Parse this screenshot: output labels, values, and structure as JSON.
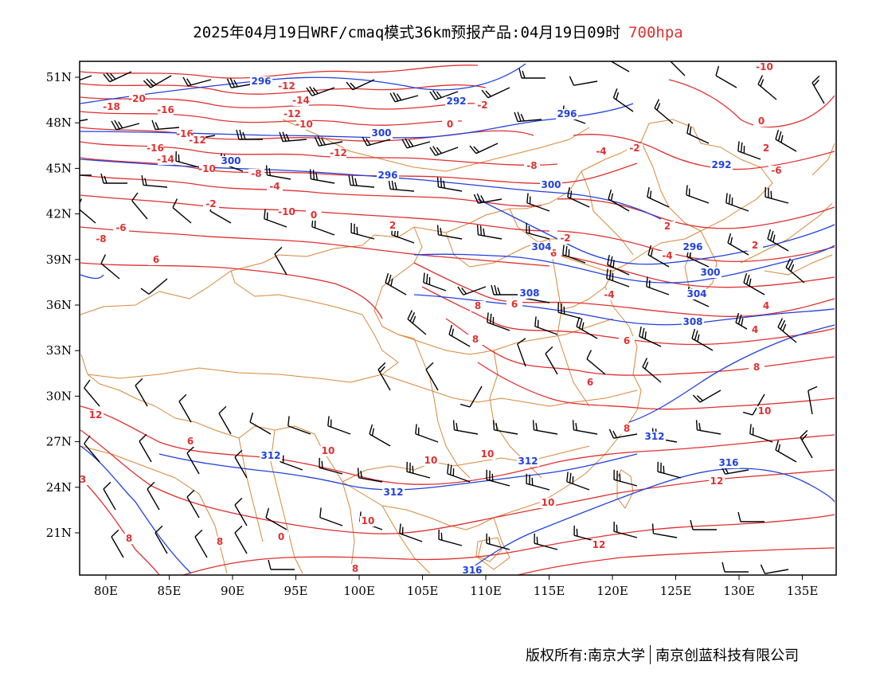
{
  "title": {
    "main": "2025年04月19日WRF/cmaq模式36km预报产品:04月19日09时",
    "level": "700hpa"
  },
  "axes": {
    "lon_labels": [
      "80E",
      "85E",
      "90E",
      "95E",
      "100E",
      "105E",
      "110E",
      "115E",
      "120E",
      "125E",
      "130E",
      "135E"
    ],
    "lat_labels": [
      "51N",
      "48N",
      "45N",
      "42N",
      "39N",
      "36N",
      "33N",
      "30N",
      "27N",
      "24N",
      "21N"
    ],
    "lon_range": [
      78,
      138
    ],
    "lat_range": [
      17.7,
      52
    ]
  },
  "colors": {
    "temperature": "#e03030",
    "geopotential": "#2040e0",
    "boundary": "#d8883a",
    "wind": "#000000"
  },
  "temperature_labels": [
    "-10",
    "-12",
    "-18",
    "-20",
    "-16",
    "-16",
    "-14",
    "-12",
    "-10",
    "-2",
    "0",
    "-16",
    "-12",
    "-14",
    "-10",
    "-8",
    "-4",
    "-2",
    "-6",
    "-8",
    "-10",
    "-12",
    "-8",
    "-4",
    "-2",
    "0",
    "2",
    "-6",
    "2",
    "-4",
    "-2",
    "-4",
    "6",
    "0",
    "2",
    "6",
    "8",
    "8",
    "6",
    "6",
    "4",
    "4",
    "6",
    "8",
    "6",
    "12",
    "8",
    "8",
    "10",
    "10",
    "10",
    "8",
    "12",
    "10",
    "12",
    "10",
    "10",
    "3",
    "0",
    "8",
    "2"
  ],
  "geopotential_labels": [
    "296",
    "292",
    "296",
    "300",
    "300",
    "296",
    "292",
    "300",
    "304",
    "296",
    "300",
    "308",
    "304",
    "308",
    "312",
    "312",
    "312",
    "312",
    "316",
    "316"
  ],
  "footer": {
    "copyright": "版权所有:南京大学",
    "company": "南京创蓝科技有限公司"
  },
  "map_elements": [
    "temperature-isotherms",
    "geopotential-height-contours",
    "province-boundaries",
    "wind-barbs"
  ]
}
